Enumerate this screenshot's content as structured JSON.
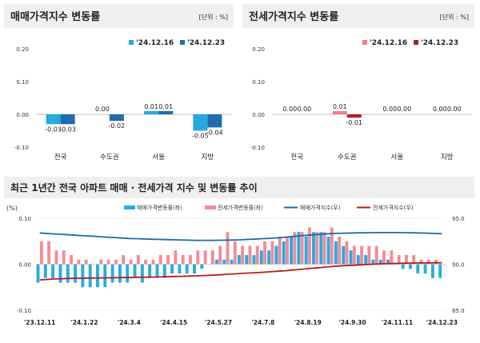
{
  "colors": {
    "panel_bg": "#efefef",
    "sale_prev": "#27a8e0",
    "sale_curr": "#1f6cb0",
    "jeonse_prev": "#f27f8a",
    "jeonse_curr": "#b51c24",
    "sale_bar": "#29abe2",
    "jeonse_bar": "#f28c96",
    "sale_line": "#1a6aa8",
    "jeonse_line": "#b71c1c",
    "grid": "#c8c8c8",
    "text": "#333333",
    "title": "#222222"
  },
  "chart_data": [
    {
      "type": "bar",
      "title": "매매가격지수 변동률",
      "unit": "[단위 : %]",
      "categories": [
        "전국",
        "수도권",
        "서울",
        "지방"
      ],
      "series": [
        {
          "name": "'24.12.16",
          "values": [
            -0.03,
            0.0,
            0.01,
            -0.05
          ]
        },
        {
          "name": "'24.12.23",
          "values": [
            -0.03,
            -0.02,
            0.01,
            -0.04
          ]
        }
      ],
      "labels": [
        [
          "-0.03",
          "0.00",
          "0.01",
          "-0.05"
        ],
        [
          "-0.03",
          "-0.02",
          "0.01",
          "-0.04"
        ]
      ],
      "ylim": [
        -0.1,
        0.2
      ],
      "yticks": [
        -0.1,
        0.0,
        0.1,
        0.2
      ],
      "ytick_labels": [
        "-0.10",
        "0.00",
        "0.10",
        "0.20"
      ],
      "legend": "top-right",
      "grid": false
    },
    {
      "type": "bar",
      "title": "전세가격지수 변동률",
      "unit": "[단위 : %]",
      "categories": [
        "전국",
        "수도권",
        "서울",
        "지방"
      ],
      "series": [
        {
          "name": "'24.12.16",
          "values": [
            0.0,
            0.01,
            0.0,
            0.0
          ]
        },
        {
          "name": "'24.12.23",
          "values": [
            0.0,
            -0.01,
            0.0,
            0.0
          ]
        }
      ],
      "labels": [
        [
          "0.00",
          "0.01",
          "0.00",
          "0.00"
        ],
        [
          "0.00",
          "-0.01",
          "0.00",
          "0.00"
        ]
      ],
      "ylim": [
        -0.1,
        0.2
      ],
      "yticks": [
        -0.1,
        0.0,
        0.1,
        0.2
      ],
      "ytick_labels": [
        "-0.10",
        "0.00",
        "0.10",
        "0.20"
      ],
      "legend": "top-right",
      "grid": false
    },
    {
      "type": "bar",
      "title": "최근 1년간 전국 아파트 매매 · 전세가격 지수 및 변동률 추이",
      "y_unit": "(%)",
      "ylim": [
        -0.1,
        0.1
      ],
      "yticks": [
        -0.1,
        0.0,
        0.1
      ],
      "ytick_labels": [
        "-0.10",
        "0.00",
        "0.10"
      ],
      "y2lim": [
        85.0,
        95.0
      ],
      "y2ticks": [
        85.0,
        90.0,
        95.0
      ],
      "y2tick_labels": [
        "85.0",
        "90.0",
        "95.0"
      ],
      "x_tick_labels": [
        "'23.12.11",
        "'24.1.22",
        "'24.3.4",
        "'24.4.15",
        "'24.5.27",
        "'24.7.8",
        "'24.8.19",
        "'24.9.30",
        "'24.11.11",
        "'24.12.23"
      ],
      "x_tick_positions": [
        0,
        6,
        12,
        18,
        24,
        30,
        36,
        42,
        48,
        54
      ],
      "legend": "top",
      "grid": true,
      "series": [
        {
          "name": "매매가격변동률(좌)",
          "kind": "bar",
          "axis": "left",
          "values": [
            -0.04,
            -0.03,
            -0.03,
            -0.04,
            -0.04,
            -0.04,
            -0.05,
            -0.05,
            -0.05,
            -0.05,
            -0.04,
            -0.04,
            -0.04,
            -0.03,
            -0.04,
            -0.03,
            -0.03,
            -0.03,
            -0.02,
            -0.02,
            -0.02,
            -0.02,
            -0.01,
            0.0,
            0.01,
            0.01,
            0.01,
            0.02,
            0.02,
            0.02,
            0.03,
            0.03,
            0.04,
            0.05,
            0.06,
            0.07,
            0.06,
            0.07,
            0.07,
            0.06,
            0.05,
            0.04,
            0.03,
            0.02,
            0.02,
            0.01,
            0.01,
            0.01,
            0.0,
            -0.01,
            -0.01,
            -0.02,
            -0.02,
            -0.03,
            -0.03
          ]
        },
        {
          "name": "전세가격변동률(좌)",
          "kind": "bar",
          "axis": "left",
          "values": [
            0.05,
            0.05,
            0.03,
            0.03,
            0.02,
            0.01,
            0.01,
            0.0,
            0.01,
            0.01,
            0.01,
            0.02,
            0.01,
            0.02,
            0.01,
            0.01,
            0.02,
            0.02,
            0.03,
            0.02,
            0.02,
            0.03,
            0.03,
            0.03,
            0.04,
            0.07,
            0.05,
            0.04,
            0.04,
            0.04,
            0.05,
            0.05,
            0.06,
            0.06,
            0.07,
            0.07,
            0.08,
            0.07,
            0.07,
            0.08,
            0.06,
            0.05,
            0.04,
            0.04,
            0.04,
            0.04,
            0.03,
            0.03,
            0.02,
            0.02,
            0.02,
            0.01,
            0.01,
            0.01,
            0.0
          ]
        },
        {
          "name": "매매가격지수(우)",
          "kind": "line",
          "axis": "right",
          "values": [
            93.4,
            93.35,
            93.3,
            93.25,
            93.2,
            93.15,
            93.1,
            93.05,
            93.0,
            92.95,
            92.9,
            92.85,
            92.8,
            92.78,
            92.75,
            92.72,
            92.7,
            92.68,
            92.66,
            92.64,
            92.62,
            92.6,
            92.6,
            92.6,
            92.61,
            92.62,
            92.64,
            92.66,
            92.7,
            92.74,
            92.78,
            92.83,
            92.88,
            92.95,
            93.02,
            93.1,
            93.16,
            93.22,
            93.28,
            93.33,
            93.36,
            93.38,
            93.4,
            93.42,
            93.43,
            93.44,
            93.44,
            93.44,
            93.44,
            93.43,
            93.42,
            93.4,
            93.38,
            93.35,
            93.32
          ]
        },
        {
          "name": "전세가격지수(우)",
          "kind": "line",
          "axis": "right",
          "values": [
            88.3,
            88.35,
            88.4,
            88.43,
            88.46,
            88.48,
            88.5,
            88.5,
            88.51,
            88.52,
            88.53,
            88.55,
            88.56,
            88.58,
            88.59,
            88.6,
            88.62,
            88.64,
            88.67,
            88.69,
            88.71,
            88.74,
            88.77,
            88.8,
            88.84,
            88.9,
            88.95,
            89.0,
            89.04,
            89.08,
            89.13,
            89.18,
            89.24,
            89.3,
            89.37,
            89.44,
            89.52,
            89.59,
            89.66,
            89.74,
            89.8,
            89.85,
            89.89,
            89.93,
            89.97,
            90.01,
            90.04,
            90.07,
            90.09,
            90.11,
            90.13,
            90.14,
            90.15,
            90.16,
            90.16
          ]
        }
      ]
    }
  ]
}
